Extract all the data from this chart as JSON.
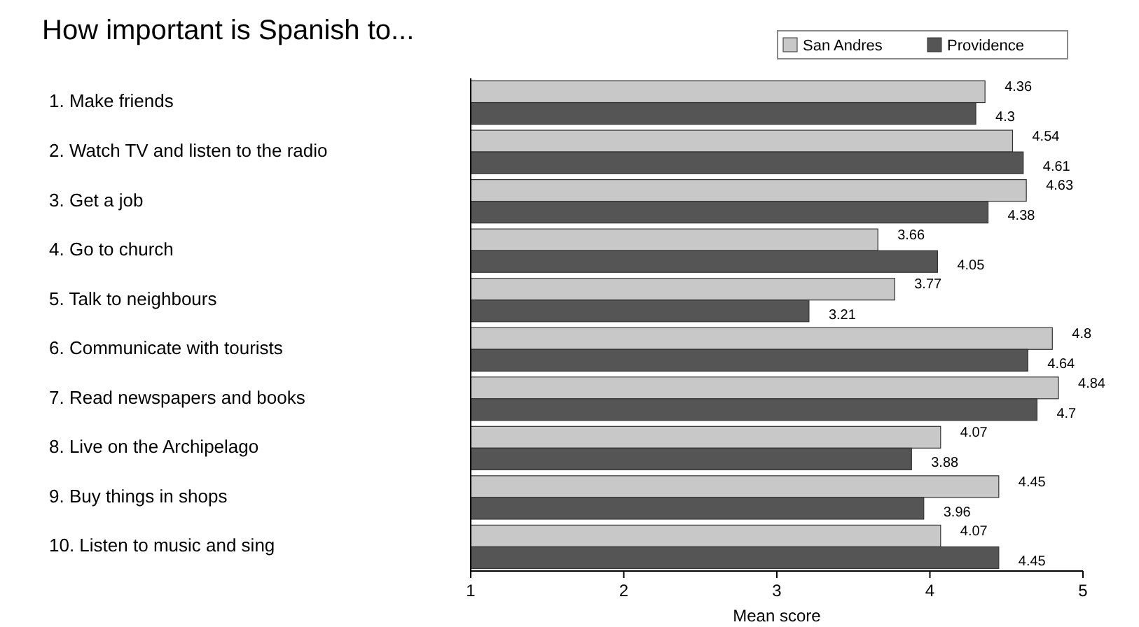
{
  "chart_data": {
    "type": "bar",
    "orientation": "horizontal",
    "title": "How important is Spanish to...",
    "xlabel": "Mean score",
    "categories": [
      "1. Make friends",
      "2. Watch TV and listen to the radio",
      "3. Get a job",
      "4. Go to church",
      "5. Talk to neighbours",
      "6. Communicate with tourists",
      "7. Read newspapers and books",
      "8. Live on the Archipelago",
      "9. Buy things in shops",
      "10. Listen to music and sing"
    ],
    "series": [
      {
        "name": "San Andres",
        "color": "#c8c8c8",
        "values": [
          4.36,
          4.54,
          4.63,
          3.66,
          3.77,
          4.8,
          4.84,
          4.07,
          4.45,
          4.07
        ]
      },
      {
        "name": "Providence",
        "color": "#555555",
        "values": [
          4.3,
          4.61,
          4.38,
          4.05,
          3.21,
          4.64,
          4.7,
          3.88,
          3.96,
          4.45
        ]
      }
    ],
    "xlim": [
      1,
      5
    ],
    "xticks": [
      1,
      2,
      3,
      4,
      5
    ],
    "data_labels": true,
    "legend": "top right",
    "grid": false
  }
}
